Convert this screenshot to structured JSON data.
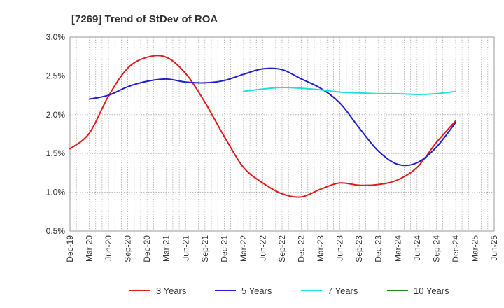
{
  "chart_data": {
    "type": "line",
    "title": "[7269]  Trend of StDev of ROA",
    "xlabel": "",
    "ylabel": "",
    "ylim": [
      0.5,
      3.0
    ],
    "y_ticks": [
      0.5,
      1.0,
      1.5,
      2.0,
      2.5,
      3.0
    ],
    "y_tick_labels": [
      "0.5%",
      "1.0%",
      "1.5%",
      "2.0%",
      "2.5%",
      "3.0%"
    ],
    "categories": [
      "Dec-19",
      "Mar-20",
      "Jun-20",
      "Sep-20",
      "Dec-20",
      "Mar-21",
      "Jun-21",
      "Sep-21",
      "Dec-21",
      "Mar-22",
      "Jun-22",
      "Sep-22",
      "Dec-22",
      "Mar-23",
      "Jun-23",
      "Sep-23",
      "Dec-23",
      "Mar-24",
      "Jun-24",
      "Sep-24",
      "Dec-24",
      "Mar-25",
      "Jun-25"
    ],
    "grid": true,
    "legend_position": "bottom",
    "series": [
      {
        "name": "3 Years",
        "color": "#e31a1c",
        "values": [
          1.56,
          1.76,
          2.24,
          2.6,
          2.74,
          2.74,
          2.53,
          2.16,
          1.72,
          1.32,
          1.12,
          0.98,
          0.94,
          1.04,
          1.12,
          1.09,
          1.1,
          1.16,
          1.32,
          1.64,
          1.92,
          null,
          null
        ]
      },
      {
        "name": "5 Years",
        "color": "#1f1fcc",
        "values": [
          null,
          2.2,
          2.25,
          2.36,
          2.43,
          2.46,
          2.42,
          2.41,
          2.44,
          2.52,
          2.59,
          2.58,
          2.46,
          2.34,
          2.15,
          1.83,
          1.53,
          1.36,
          1.38,
          1.58,
          1.9,
          null,
          null
        ]
      },
      {
        "name": "7 Years",
        "color": "#22dddd",
        "values": [
          null,
          null,
          null,
          null,
          null,
          null,
          null,
          null,
          null,
          2.3,
          2.33,
          2.35,
          2.34,
          2.32,
          2.29,
          2.28,
          2.27,
          2.27,
          2.26,
          2.27,
          2.3,
          null,
          null
        ]
      },
      {
        "name": "10 Years",
        "color": "#1a8a1a",
        "values": [
          null,
          null,
          null,
          null,
          null,
          null,
          null,
          null,
          null,
          null,
          null,
          null,
          null,
          null,
          null,
          null,
          null,
          null,
          null,
          null,
          null,
          null,
          null
        ]
      }
    ]
  }
}
